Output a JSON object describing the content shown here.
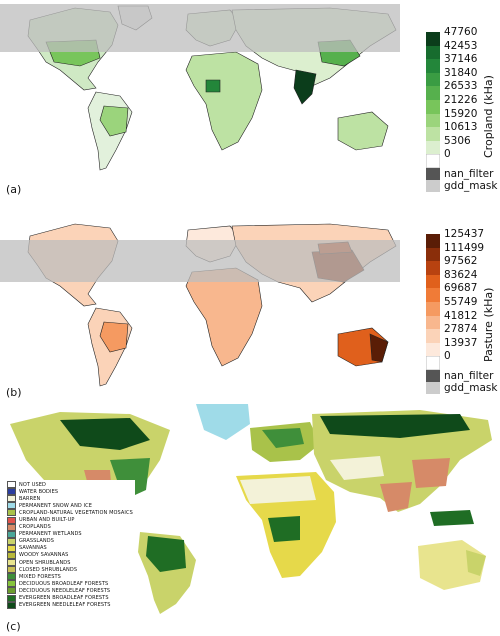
{
  "panels": [
    {
      "id": "a",
      "label": "(a)",
      "colorbar_title": "Cropland (kHa)",
      "ticks": [
        "47760",
        "42453",
        "37146",
        "31840",
        "26533",
        "21226",
        "15920",
        "10613",
        "5306",
        "0",
        "nan_filter",
        "gdd_mask"
      ],
      "colors": [
        "#0b3d1b",
        "#176c2e",
        "#23863a",
        "#3a9c43",
        "#56b04d",
        "#78c55b",
        "#9bd47c",
        "#bde2a3",
        "#dcefcf",
        "#ffffff"
      ],
      "nan_color": "#555555",
      "mask_color": "#cccccc"
    },
    {
      "id": "b",
      "label": "(b)",
      "colorbar_title": "Pasture (kHa)",
      "ticks": [
        "125437",
        "111499",
        "97562",
        "83624",
        "69687",
        "55749",
        "41812",
        "27874",
        "13937",
        "0",
        "nan_filter",
        "gdd_mask"
      ],
      "colors": [
        "#5a1d06",
        "#8a2e0a",
        "#b84210",
        "#e0601c",
        "#f07b37",
        "#f59a61",
        "#f8b78e",
        "#fbd3b8",
        "#fde9dc",
        "#ffffff"
      ],
      "nan_color": "#555555",
      "mask_color": "#cccccc"
    }
  ],
  "panel_c": {
    "label": "(c)",
    "legend": [
      {
        "label": "NOT USED",
        "color": "#ffffff"
      },
      {
        "label": "WATER BODIES",
        "color": "#2c3e9f"
      },
      {
        "label": "BARREN",
        "color": "#f3f2d8"
      },
      {
        "label": "PERMANENT SNOW AND ICE",
        "color": "#9fdbe8"
      },
      {
        "label": "CROPLAND-NATURAL VEGETATION MOSAICS",
        "color": "#a9c24a"
      },
      {
        "label": "URBAN AND BUILT-UP",
        "color": "#e0524b"
      },
      {
        "label": "CROPLANDS",
        "color": "#d68a68"
      },
      {
        "label": "PERMANENT WETLANDS",
        "color": "#4aa79a"
      },
      {
        "label": "GRASSLANDS",
        "color": "#c9d36a"
      },
      {
        "label": "SAVANNAS",
        "color": "#e6d94a"
      },
      {
        "label": "WOODY SAVANNAS",
        "color": "#b8b83a"
      },
      {
        "label": "OPEN SHRUBLANDS",
        "color": "#e8e48e"
      },
      {
        "label": "CLOSED SHRUBLANDS",
        "color": "#c8bf55"
      },
      {
        "label": "MIXED FORESTS",
        "color": "#3f8f3a"
      },
      {
        "label": "DECIDUOUS BROADLEAF FORESTS",
        "color": "#86c43c"
      },
      {
        "label": "DECIDUOUS NEEDLELEAF FORESTS",
        "color": "#6c9c2e"
      },
      {
        "label": "EVERGREEN BROADLEAF FORESTS",
        "color": "#1f6d24"
      },
      {
        "label": "EVERGREEN NEEDLELEAF FORESTS",
        "color": "#0f4a1a"
      }
    ]
  },
  "colors": {
    "mask_band": "#cfcfcf",
    "land_base_a": "#e8f4e2",
    "land_base_b": "#fbe3d4"
  }
}
